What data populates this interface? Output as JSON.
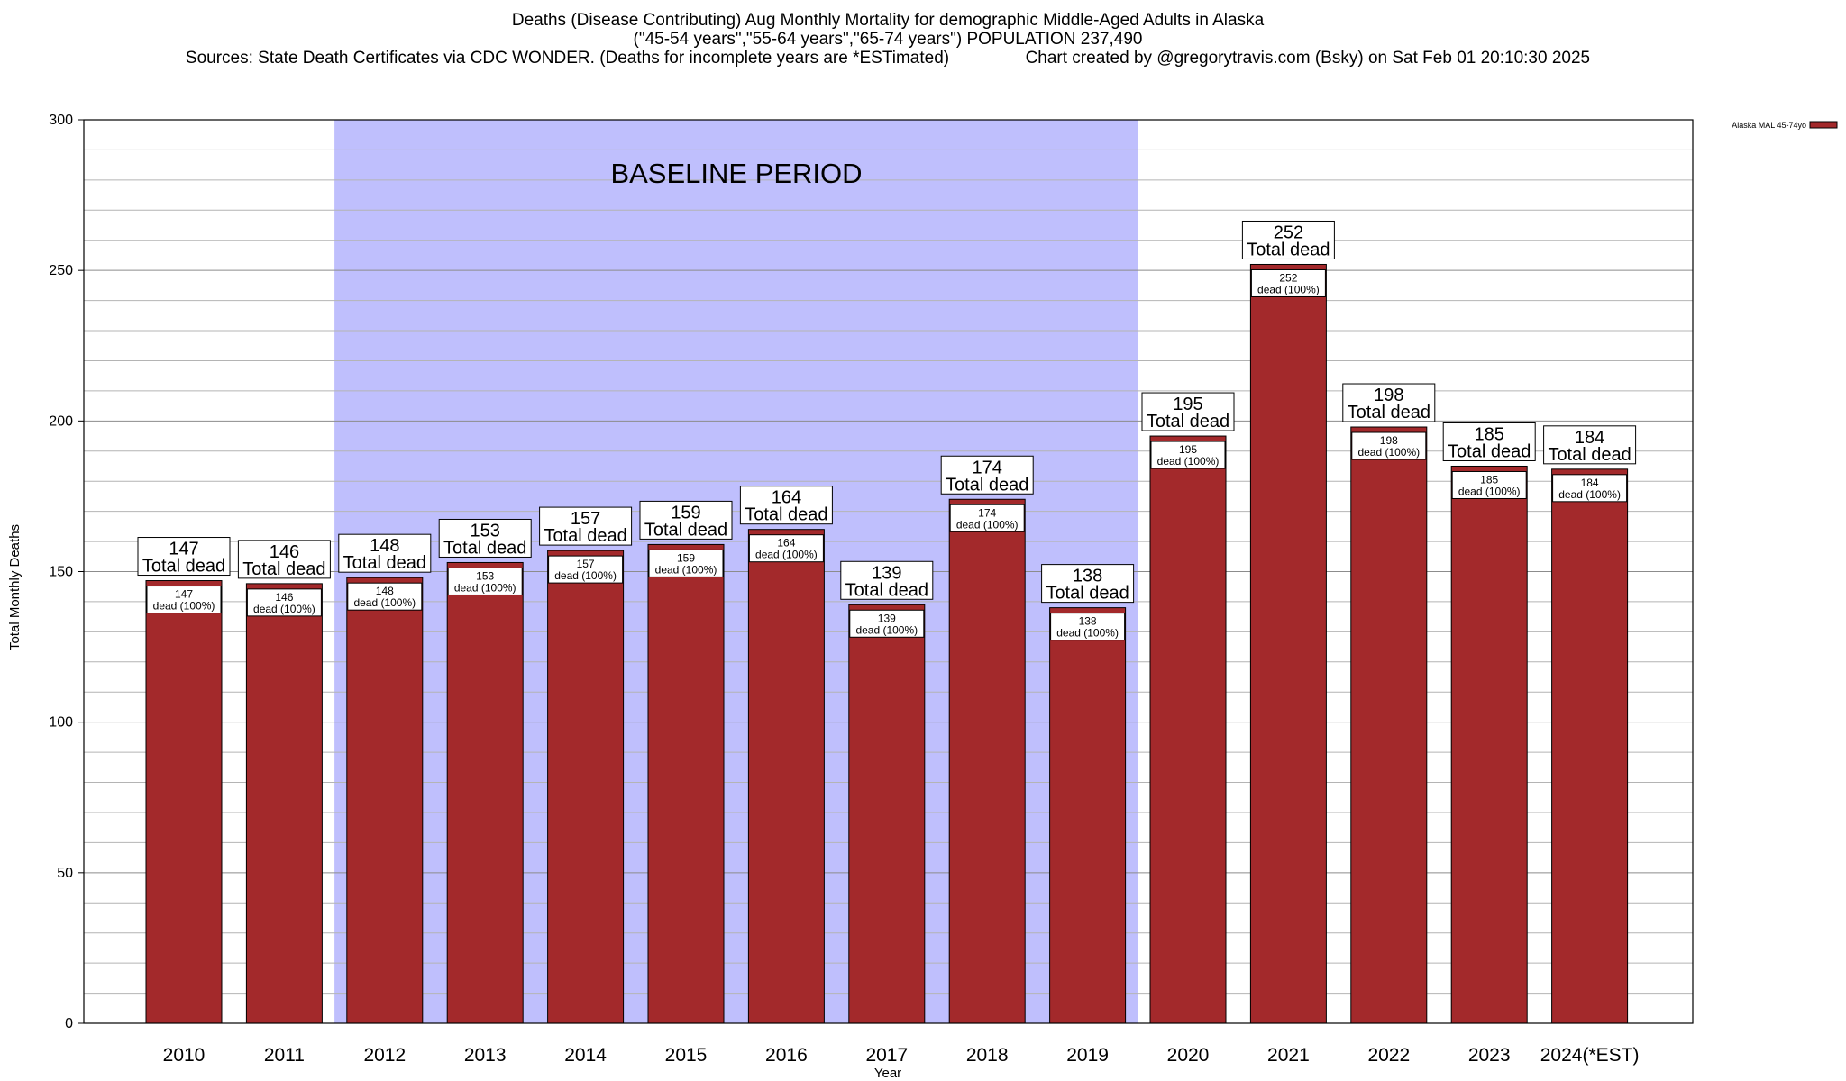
{
  "chart_data": {
    "type": "bar",
    "title": "Deaths (Disease Contributing) Aug Monthly Mortality for demographic Middle-Aged Adults in Alaska",
    "subtitle": "(\"45-54 years\",\"55-64 years\",\"65-74 years\") POPULATION 237,490",
    "source_line": "Sources: State Death Certificates via CDC WONDER. (Deaths for incomplete years are *ESTimated)",
    "credit_line": "Chart created by @gregorytravis.com (Bsky) on Sat Feb 01 20:10:30 2025",
    "xlabel": "Year",
    "ylabel": "Total Monthly Deaths",
    "ylim": [
      0,
      300
    ],
    "yticks": [
      0,
      50,
      100,
      150,
      200,
      250,
      300
    ],
    "grid_minor_step": 10,
    "grid": true,
    "categories": [
      "2010",
      "2011",
      "2012",
      "2013",
      "2014",
      "2015",
      "2016",
      "2017",
      "2018",
      "2019",
      "2020",
      "2021",
      "2022",
      "2023",
      "2024(*EST)"
    ],
    "series": [
      {
        "name": "Alaska MAL 45-74yo",
        "color": "#a3292b",
        "values": [
          147,
          146,
          148,
          153,
          157,
          159,
          164,
          139,
          174,
          138,
          195,
          252,
          198,
          185,
          184
        ]
      }
    ],
    "total_label_text": "Total dead",
    "inner_label_text": "dead (100%)",
    "baseline": {
      "label": "BASELINE PERIOD",
      "from": "2012",
      "to": "2019",
      "color": "#bfbffd"
    },
    "legend_position": "top-right"
  }
}
